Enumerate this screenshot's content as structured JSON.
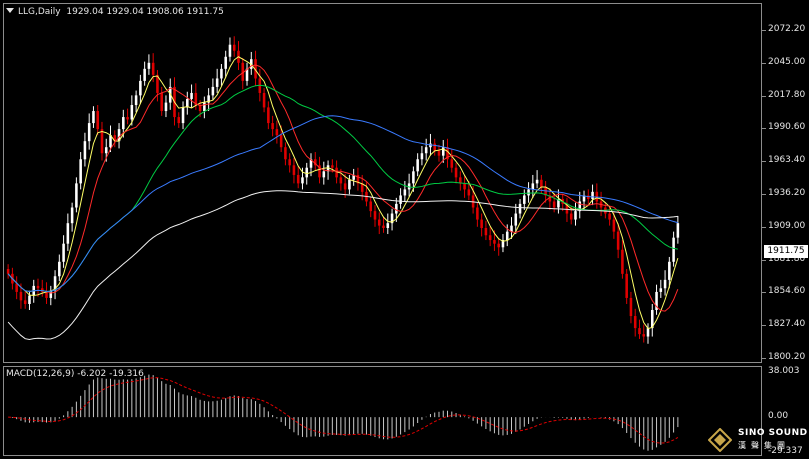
{
  "header": {
    "symbol_timeframe": "LLG,Daily",
    "ohlc": "1929.04 1929.04 1908.06 1911.75"
  },
  "price_axis": {
    "labels": [
      "2072.20",
      "2045.00",
      "2017.80",
      "1990.60",
      "1963.40",
      "1936.20",
      "1909.00",
      "1881.80",
      "1854.60",
      "1827.40",
      "1800.20"
    ],
    "current_price": "1911.75"
  },
  "macd": {
    "header": "MACD(12,26,9) -6.202 -19.316",
    "axis_labels": [
      "38.003",
      "0.00",
      "-29.337"
    ]
  },
  "logo": {
    "line1": "SINO SOUND",
    "line2": "漢聲集團"
  },
  "colors": {
    "background": "#000000",
    "bull_candle": "#ffffff",
    "bear_candle": "#e00000",
    "ma5": "#ffff66",
    "ma20": "#ff2a2a",
    "ma60": "#00cc44",
    "ma120": "#3a7bff",
    "ma250": "#f0f0f0",
    "macd_signal": "#e00000",
    "macd_hist": "#c8c8c8"
  },
  "chart_data": {
    "type": "candlestick",
    "y_range": [
      1800.2,
      2072.2
    ],
    "macd_range": [
      -29.337,
      38.003
    ],
    "closes": [
      1870,
      1862,
      1855,
      1848,
      1845,
      1852,
      1860,
      1858,
      1855,
      1850,
      1856,
      1868,
      1880,
      1895,
      1912,
      1925,
      1945,
      1965,
      1980,
      1995,
      2005,
      1990,
      1970,
      1975,
      1985,
      1980,
      1990,
      2000,
      1998,
      2010,
      2018,
      2030,
      2040,
      2045,
      2035,
      2020,
      2005,
      2012,
      2025,
      2000,
      1995,
      2008,
      2015,
      2020,
      2010,
      2005,
      2012,
      2018,
      2025,
      2032,
      2040,
      2050,
      2060,
      2055,
      2045,
      2030,
      2040,
      2048,
      2032,
      2020,
      2008,
      1995,
      1990,
      1985,
      1975,
      1965,
      1960,
      1952,
      1945,
      1950,
      1958,
      1965,
      1960,
      1950,
      1955,
      1960,
      1958,
      1950,
      1945,
      1940,
      1948,
      1952,
      1945,
      1938,
      1930,
      1922,
      1915,
      1910,
      1908,
      1912,
      1920,
      1928,
      1935,
      1940,
      1945,
      1955,
      1965,
      1970,
      1975,
      1978,
      1972,
      1968,
      1975,
      1965,
      1958,
      1950,
      1945,
      1940,
      1935,
      1925,
      1915,
      1908,
      1902,
      1898,
      1895,
      1892,
      1898,
      1905,
      1910,
      1920,
      1928,
      1935,
      1940,
      1945,
      1948,
      1942,
      1935,
      1930,
      1925,
      1932,
      1928,
      1920,
      1915,
      1922,
      1930,
      1935,
      1932,
      1938,
      1930,
      1925,
      1920,
      1915,
      1905,
      1890,
      1870,
      1850,
      1835,
      1825,
      1820,
      1818,
      1825,
      1840,
      1855,
      1858,
      1865,
      1880,
      1900,
      1912
    ]
  }
}
